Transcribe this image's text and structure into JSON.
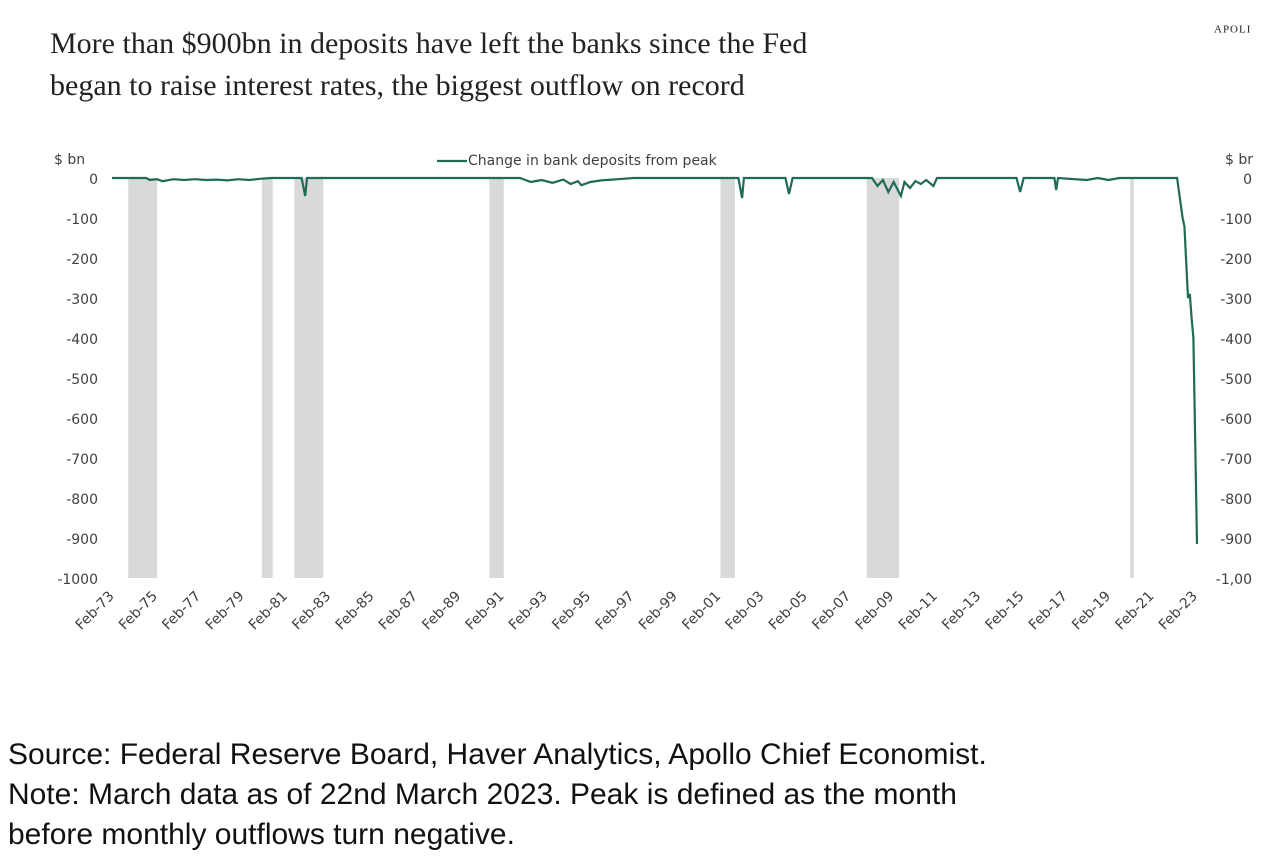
{
  "brand": "APOLI",
  "chart_data": {
    "type": "line",
    "title": [
      "More than $900bn in deposits have left the banks since the Fed",
      "began to raise interest rates, the biggest outflow on record"
    ],
    "ylabel": "$ bn",
    "y2label": "$ br",
    "x": [
      "Feb-73",
      "Sep-74",
      "Nov-74",
      "Mar-75",
      "Jun-75",
      "Dec-75",
      "Jun-76",
      "Dec-76",
      "Jun-77",
      "Dec-77",
      "Jun-78",
      "Dec-78",
      "Jun-79",
      "Dec-79",
      "Jun-80",
      "Nov-81",
      "Jan-82",
      "Feb-82",
      "Dec-91",
      "Jun-92",
      "Dec-92",
      "Jun-93",
      "Dec-93",
      "Apr-94",
      "Aug-94",
      "Oct-94",
      "Mar-95",
      "Sep-95",
      "Mar-96",
      "Sep-96",
      "Mar-97",
      "Jan-02",
      "Mar-02",
      "Apr-02",
      "Mar-04",
      "May-04",
      "Jul-04",
      "Mar-08",
      "Jun-08",
      "Sep-08",
      "Dec-08",
      "Mar-09",
      "Jul-09",
      "Sep-09",
      "Dec-09",
      "Mar-10",
      "Jun-10",
      "Sep-10",
      "Jan-11",
      "Mar-11",
      "Nov-14",
      "Jan-15",
      "Mar-15",
      "Aug-16",
      "Sep-16",
      "Oct-16",
      "Feb-18",
      "Aug-18",
      "Feb-19",
      "Aug-19",
      "Apr-22",
      "Jul-22",
      "Aug-22",
      "Oct-22",
      "Nov-22",
      "Dec-22",
      "Jan-23",
      "Mar-23"
    ],
    "series": [
      {
        "name": "Change in bank deposits from peak",
        "color": "#1f6b57",
        "values": [
          0,
          0,
          -5,
          -3,
          -8,
          -3,
          -5,
          -3,
          -5,
          -4,
          -6,
          -3,
          -5,
          -2,
          0,
          0,
          -45,
          0,
          0,
          -10,
          -5,
          -12,
          -4,
          -15,
          -8,
          -18,
          -10,
          -6,
          -4,
          -2,
          0,
          0,
          -50,
          0,
          0,
          -40,
          0,
          0,
          -20,
          -5,
          -35,
          -10,
          -45,
          -10,
          -25,
          -8,
          -15,
          -5,
          -20,
          0,
          0,
          -35,
          0,
          0,
          -30,
          0,
          -5,
          0,
          -5,
          0,
          0,
          -100,
          -120,
          -300,
          -290,
          -350,
          -400,
          -915
        ]
      }
    ],
    "shaded_periods": [
      [
        "Nov-73",
        "Mar-75"
      ],
      [
        "Jan-80",
        "Jul-80"
      ],
      [
        "Jul-81",
        "Nov-82"
      ],
      [
        "Jul-90",
        "Mar-91"
      ],
      [
        "Mar-01",
        "Nov-01"
      ],
      [
        "Dec-07",
        "Jun-09"
      ],
      [
        "Feb-20",
        "Apr-20"
      ]
    ],
    "shade_color": "#d9d9d9",
    "xticks": [
      "Feb-73",
      "Feb-75",
      "Feb-77",
      "Feb-79",
      "Feb-81",
      "Feb-83",
      "Feb-85",
      "Feb-87",
      "Feb-89",
      "Feb-91",
      "Feb-93",
      "Feb-95",
      "Feb-97",
      "Feb-99",
      "Feb-01",
      "Feb-03",
      "Feb-05",
      "Feb-07",
      "Feb-09",
      "Feb-11",
      "Feb-13",
      "Feb-15",
      "Feb-17",
      "Feb-19",
      "Feb-21",
      "Feb-23"
    ],
    "ylim": [
      -1000,
      0
    ],
    "yticks": [
      0,
      -100,
      -200,
      -300,
      -400,
      -500,
      -600,
      -700,
      -800,
      -900,
      -1000
    ],
    "y2lim": [
      -1000,
      0
    ],
    "y2ticks": [
      0,
      -100,
      -200,
      -300,
      -400,
      -500,
      -600,
      -700,
      -800,
      -900,
      {
        "value": -1000,
        "label": "-1,00"
      }
    ],
    "grid": false
  },
  "footnote_lines": [
    "Source: Federal Reserve Board, Haver Analytics, Apollo Chief Economist.",
    "Note: March data as of 22nd March 2023. Peak is defined as the month",
    "before monthly outflows turn negative."
  ]
}
